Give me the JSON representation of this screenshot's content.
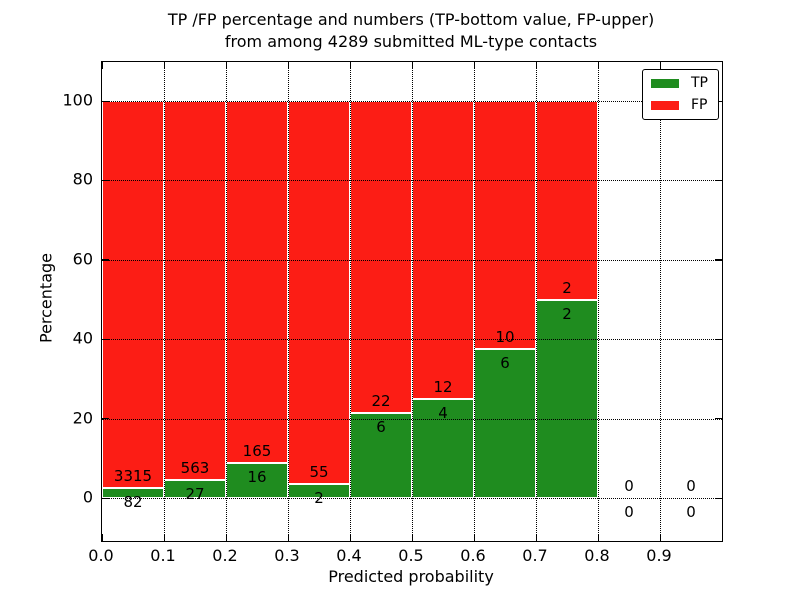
{
  "title": {
    "line1": "TP /FP percentage and numbers (TP-bottom value, FP-upper)",
    "line2": "from among 4289 submitted ML-type contacts"
  },
  "xlabel": "Predicted probability",
  "ylabel": "Percentage",
  "colors": {
    "tp": "#1f8c1f",
    "fp": "#fc1d15",
    "bar_edge": "#ffffff",
    "grid": "#000000",
    "text": "#000000",
    "spine": "#000000",
    "background": "#ffffff"
  },
  "legend": {
    "position": "upper right",
    "items": [
      {
        "label": "TP",
        "color_key": "tp"
      },
      {
        "label": "FP",
        "color_key": "fp"
      }
    ]
  },
  "chart_data": {
    "type": "bar",
    "stacked": true,
    "orientation": "vertical",
    "title": "TP /FP percentage and numbers (TP-bottom value, FP-upper) from among 4289 submitted ML-type contacts",
    "xlabel": "Predicted probability",
    "ylabel": "Percentage",
    "total_submitted_contacts": 4289,
    "bin_starts": [
      0.0,
      0.1,
      0.2,
      0.3,
      0.4,
      0.5,
      0.6,
      0.7,
      0.8,
      0.9
    ],
    "bin_width": 0.1,
    "series": [
      {
        "name": "TP",
        "color_key": "tp",
        "counts": [
          82,
          27,
          16,
          2,
          6,
          4,
          6,
          2,
          0,
          0
        ]
      },
      {
        "name": "FP",
        "color_key": "fp",
        "counts": [
          3315,
          563,
          165,
          55,
          22,
          12,
          10,
          2,
          0,
          0
        ]
      }
    ],
    "tp_percent_of_bin": [
      2.41,
      4.58,
      8.84,
      3.51,
      21.43,
      25.0,
      37.5,
      50.0,
      0,
      0
    ],
    "fp_percent_of_bin": [
      97.59,
      95.42,
      91.16,
      96.49,
      78.57,
      75.0,
      62.5,
      50.0,
      0,
      0
    ],
    "value_label_rule": "FP count printed just above TP/FP boundary, TP count just below",
    "x_tick_labels": [
      "0.0",
      "0.1",
      "0.2",
      "0.3",
      "0.4",
      "0.5",
      "0.6",
      "0.7",
      "0.8",
      "0.9"
    ],
    "y_tick_labels": [
      "0",
      "20",
      "40",
      "60",
      "80",
      "100"
    ],
    "y_tick_values": [
      0,
      20,
      40,
      60,
      80,
      100
    ],
    "xlim": [
      0.0,
      1.0
    ],
    "ylim": [
      -10.8,
      110
    ],
    "grid": "dotted black, both axes, drawn over bars",
    "legend_position": "upper right"
  }
}
